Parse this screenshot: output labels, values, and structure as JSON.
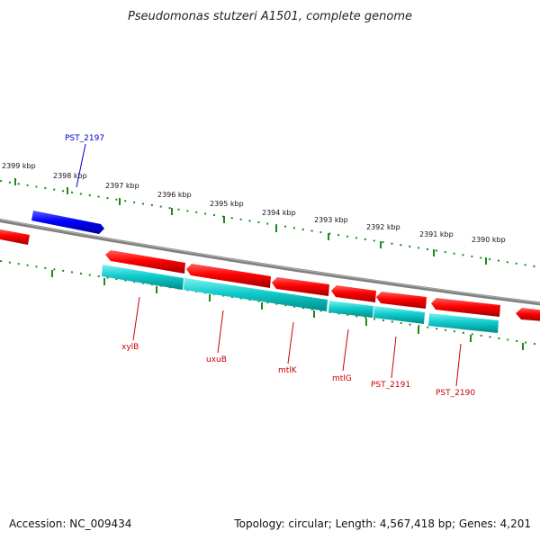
{
  "title": "Pseudomonas stutzeri A1501, complete genome",
  "footer": {
    "accession": "Accession: NC_009434",
    "info": "Topology: circular; Length: 4,567,418 bp; Genes: 4,201"
  },
  "ticks": [
    "2399 kbp",
    "2398 kbp",
    "2397 kbp",
    "2396 kbp",
    "2395 kbp",
    "2394 kbp",
    "2393 kbp",
    "2392 kbp",
    "2391 kbp",
    "2390 kbp"
  ],
  "gene_labels": [
    {
      "text": "PST_2197",
      "strand": "plus"
    },
    {
      "text": "xylB",
      "strand": "minus"
    },
    {
      "text": "uxuB",
      "strand": "minus"
    },
    {
      "text": "mtlK",
      "strand": "minus"
    },
    {
      "text": "mtlG",
      "strand": "minus"
    },
    {
      "text": "PST_2191",
      "strand": "minus"
    },
    {
      "text": "PST_2190",
      "strand": "minus"
    }
  ],
  "colors": {
    "backbone": "#808080",
    "gene_plus": "#0000ff",
    "gene_minus": "#ff0000",
    "cds": "#00c8c8",
    "ticks": "#008000",
    "label_plus": "#0000cc",
    "label_minus": "#cc0000"
  }
}
